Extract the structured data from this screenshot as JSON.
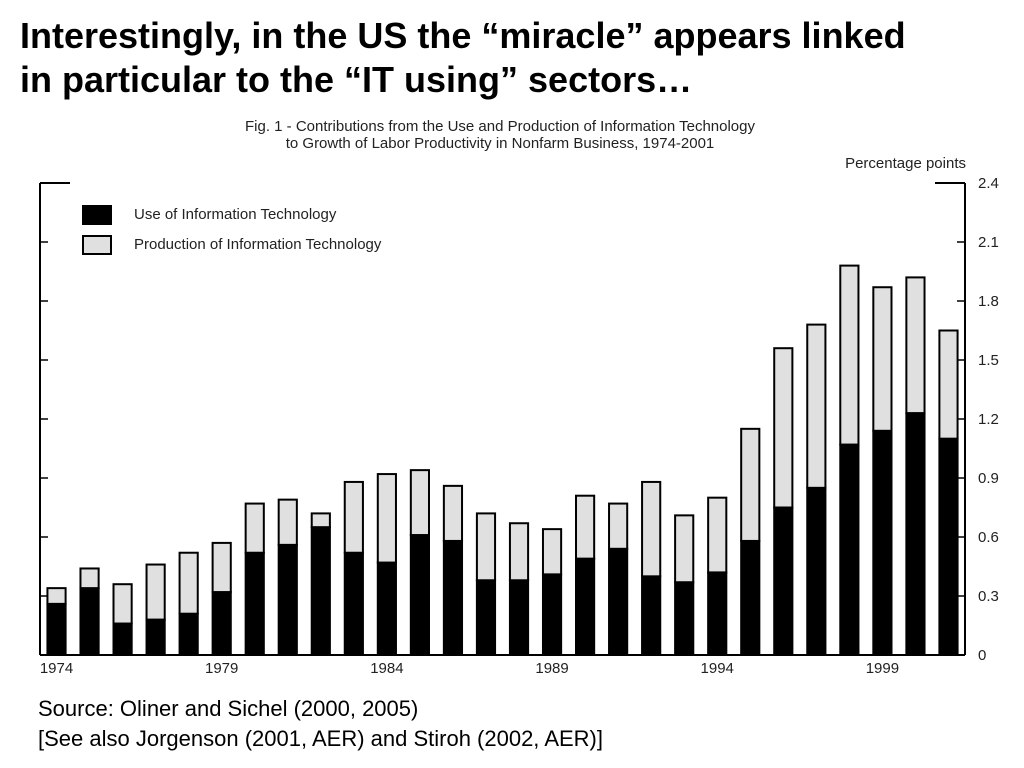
{
  "slide": {
    "title_line1": "Interestingly, in the US the “miracle” appears linked",
    "title_line2": "in particular to the “IT using” sectors…",
    "source_line1": "Source: Oliner and Sichel (2000, 2005)",
    "source_line2": "[See also Jorgenson (2001, AER) and Stiroh (2002, AER)]"
  },
  "chart_data": {
    "type": "bar",
    "stacked": true,
    "title_line1": "Fig. 1 - Contributions from the Use and Production of Information Technology",
    "title_line2": "to Growth of Labor Productivity in Nonfarm Business, 1974-2001",
    "ylabel": "Percentage points",
    "ylim": [
      0,
      2.4
    ],
    "y_ticks": [
      0,
      0.3,
      0.6,
      0.9,
      1.2,
      1.5,
      1.8,
      2.1,
      2.4
    ],
    "y_tick_labels": [
      "0",
      "0.3",
      "0.6",
      "0.9",
      "1.2",
      "1.5",
      "1.8",
      "2.1",
      "2.4"
    ],
    "x_tick_labels": [
      "1974",
      "1979",
      "1984",
      "1989",
      "1994",
      "1999"
    ],
    "categories": [
      1974,
      1975,
      1976,
      1977,
      1978,
      1979,
      1980,
      1981,
      1982,
      1983,
      1984,
      1985,
      1986,
      1987,
      1988,
      1989,
      1990,
      1991,
      1992,
      1993,
      1994,
      1995,
      1996,
      1997,
      1998,
      1999,
      2000,
      2001
    ],
    "series": [
      {
        "name": "Use of Information Technology",
        "color": "#000000",
        "values": [
          0.26,
          0.34,
          0.16,
          0.18,
          0.21,
          0.32,
          0.52,
          0.56,
          0.65,
          0.52,
          0.47,
          0.61,
          0.58,
          0.38,
          0.38,
          0.41,
          0.49,
          0.54,
          0.4,
          0.37,
          0.42,
          0.58,
          0.75,
          0.85,
          1.07,
          1.14,
          1.23,
          1.1
        ]
      },
      {
        "name": "Production of Information Technology",
        "color": "#e0e0e0",
        "values": [
          0.08,
          0.1,
          0.2,
          0.28,
          0.31,
          0.25,
          0.25,
          0.23,
          0.07,
          0.36,
          0.45,
          0.33,
          0.28,
          0.34,
          0.29,
          0.23,
          0.32,
          0.23,
          0.48,
          0.34,
          0.38,
          0.57,
          0.81,
          0.83,
          0.91,
          0.73,
          0.69,
          0.55
        ]
      }
    ],
    "legend_position": "top-left",
    "grid": false
  }
}
